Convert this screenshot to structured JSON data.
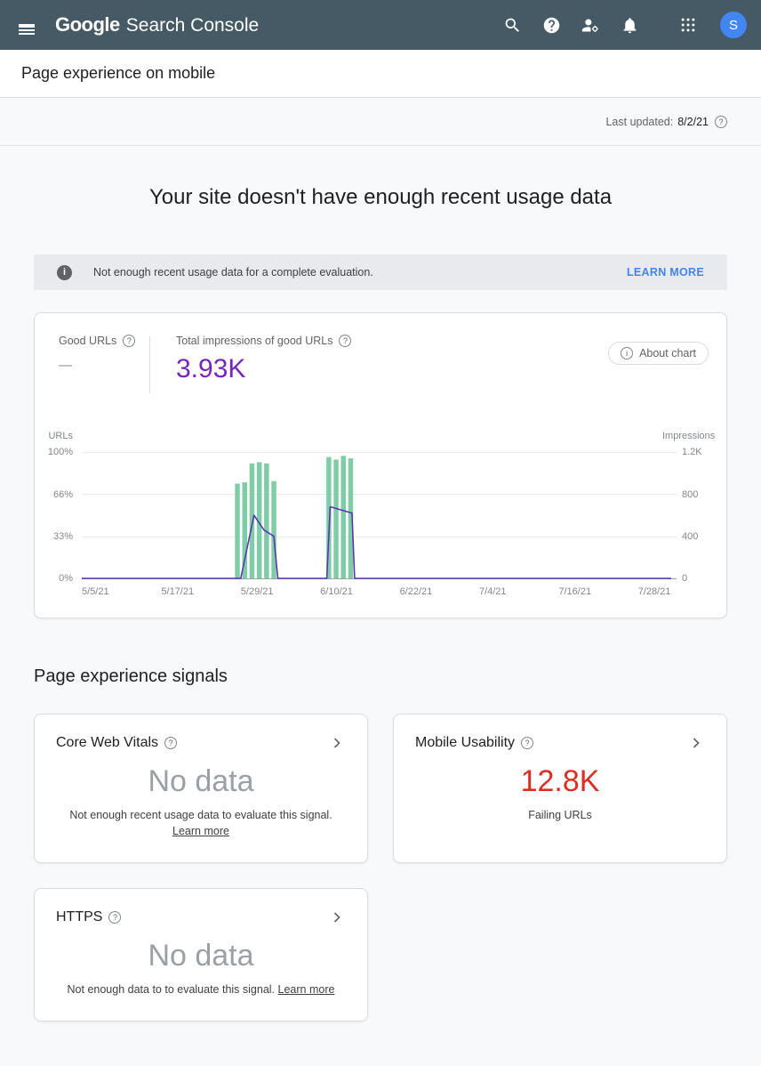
{
  "icons": {
    "help": "?",
    "info": "i"
  },
  "colors": {
    "header_bg": "#455a64",
    "accent_purple": "#7627bb",
    "line_purple": "#5e35b1",
    "bar_green": "#7fcda6",
    "failing_red": "#d93025",
    "link_blue": "#4285f4",
    "muted_gray": "#9aa0a6"
  },
  "header": {
    "google": "Google",
    "product": "Search Console",
    "avatar": "S"
  },
  "subheader": {
    "title": "Page experience on mobile"
  },
  "updated": {
    "label": "Last updated:",
    "value": "8/2/21"
  },
  "page": {
    "title": "Your site doesn't have enough recent usage data"
  },
  "banner": {
    "message": "Not enough recent usage data for a complete evaluation.",
    "action": "LEARN MORE"
  },
  "summary": {
    "good_urls_label": "Good URLs",
    "good_urls_value": "—",
    "impressions_label": "Total impressions of good URLs",
    "impressions_value": "3.93K",
    "impressions_color": "#7627bb",
    "about_chart_label": "About chart"
  },
  "chart_data": {
    "type": "combo_bar_line",
    "title": "Total impressions of good URLs",
    "days_total": 89,
    "gridlines": [
      0,
      0.335,
      0.67,
      1
    ],
    "left_axis": {
      "title": "URLs",
      "max": 100,
      "ticks": [
        {
          "label": "100%",
          "frac": 0
        },
        {
          "label": "66%",
          "frac": 0.335
        },
        {
          "label": "33%",
          "frac": 0.67
        },
        {
          "label": "0%",
          "frac": 1
        }
      ]
    },
    "right_axis": {
      "title": "Impressions",
      "max": 1200,
      "ticks": [
        {
          "label": "1.2K",
          "frac": 0
        },
        {
          "label": "800",
          "frac": 0.335
        },
        {
          "label": "400",
          "frac": 0.67
        },
        {
          "label": "0",
          "frac": 1
        }
      ]
    },
    "x_ticks": [
      {
        "day": 0,
        "label": "5/5/21"
      },
      {
        "day": 12,
        "label": "5/17/21"
      },
      {
        "day": 24,
        "label": "5/29/21"
      },
      {
        "day": 36,
        "label": "6/10/21"
      },
      {
        "day": 48,
        "label": "6/22/21"
      },
      {
        "day": 60,
        "label": "7/4/21"
      },
      {
        "day": 72,
        "label": "7/16/21"
      },
      {
        "day": 84,
        "label": "7/28/21"
      }
    ],
    "bar_series": {
      "name": "Good URLs %",
      "color": "#7fcda6",
      "bar_width": 5.5,
      "points": [
        {
          "day": 23.5,
          "value": 75
        },
        {
          "day": 24.6,
          "value": 76
        },
        {
          "day": 25.7,
          "value": 91
        },
        {
          "day": 26.8,
          "value": 92
        },
        {
          "day": 27.9,
          "value": 91
        },
        {
          "day": 29.0,
          "value": 77
        },
        {
          "day": 37.3,
          "value": 96
        },
        {
          "day": 38.4,
          "value": 94
        },
        {
          "day": 39.5,
          "value": 97
        },
        {
          "day": 40.6,
          "value": 95
        }
      ]
    },
    "line_series": {
      "name": "Impressions",
      "color": "#5e35b1",
      "points": [
        [
          0,
          0
        ],
        [
          24,
          0
        ],
        [
          26,
          600
        ],
        [
          27.5,
          460
        ],
        [
          29,
          400
        ],
        [
          29.6,
          0
        ],
        [
          37,
          0
        ],
        [
          37.5,
          680
        ],
        [
          40.8,
          620
        ],
        [
          41.2,
          0
        ],
        [
          89,
          0
        ]
      ]
    }
  },
  "signals": {
    "heading": "Page experience signals",
    "cards": [
      {
        "title": "Core Web Vitals",
        "value": "No data",
        "value_color": "#9aa0a6",
        "description": "Not enough recent usage data to evaluate this signal.",
        "link": "Learn more"
      },
      {
        "title": "Mobile Usability",
        "value": "12.8K",
        "value_color": "#d93025",
        "description": "Failing URLs",
        "link": ""
      },
      {
        "title": "HTTPS",
        "value": "No data",
        "value_color": "#9aa0a6",
        "description": "Not enough data to to evaluate this signal.",
        "link": "Learn more"
      }
    ]
  }
}
